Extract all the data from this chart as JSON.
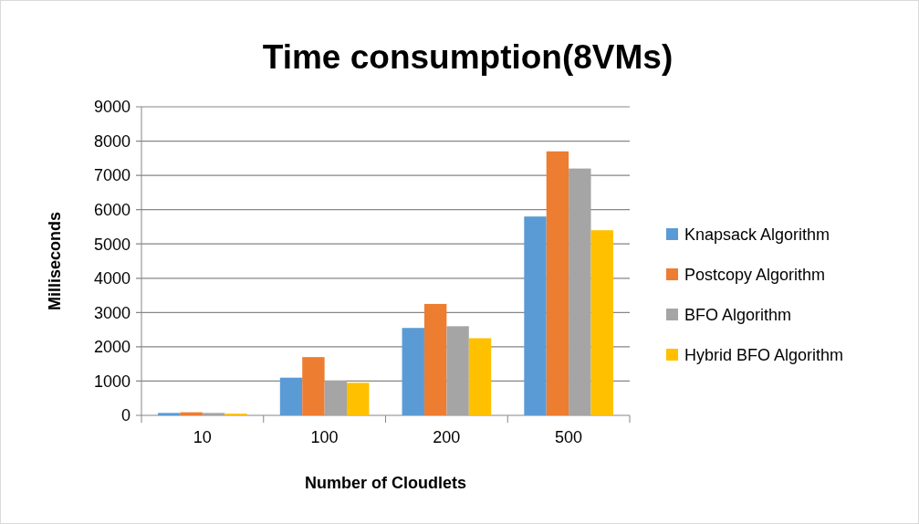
{
  "chart_data": {
    "type": "bar",
    "title": "Time consumption(8VMs)",
    "xlabel": "Number of Cloudlets",
    "ylabel": "Milliseconds",
    "categories": [
      "10",
      "100",
      "200",
      "500"
    ],
    "series": [
      {
        "name": "Knapsack Algorithm",
        "color": "#5b9bd5",
        "values": [
          70,
          1100,
          2550,
          5800
        ]
      },
      {
        "name": "Postcopy Algorithm",
        "color": "#ed7d31",
        "values": [
          90,
          1700,
          3250,
          7700
        ]
      },
      {
        "name": "BFO Algorithm",
        "color": "#a5a5a5",
        "values": [
          70,
          1010,
          2600,
          7200
        ]
      },
      {
        "name": "Hybrid BFO Algorithm",
        "color": "#ffc000",
        "values": [
          50,
          950,
          2250,
          5400
        ]
      }
    ],
    "ylim": [
      0,
      9000
    ],
    "yticks": [
      0,
      1000,
      2000,
      3000,
      4000,
      5000,
      6000,
      7000,
      8000,
      9000
    ],
    "grid": "y",
    "legend": "right"
  }
}
